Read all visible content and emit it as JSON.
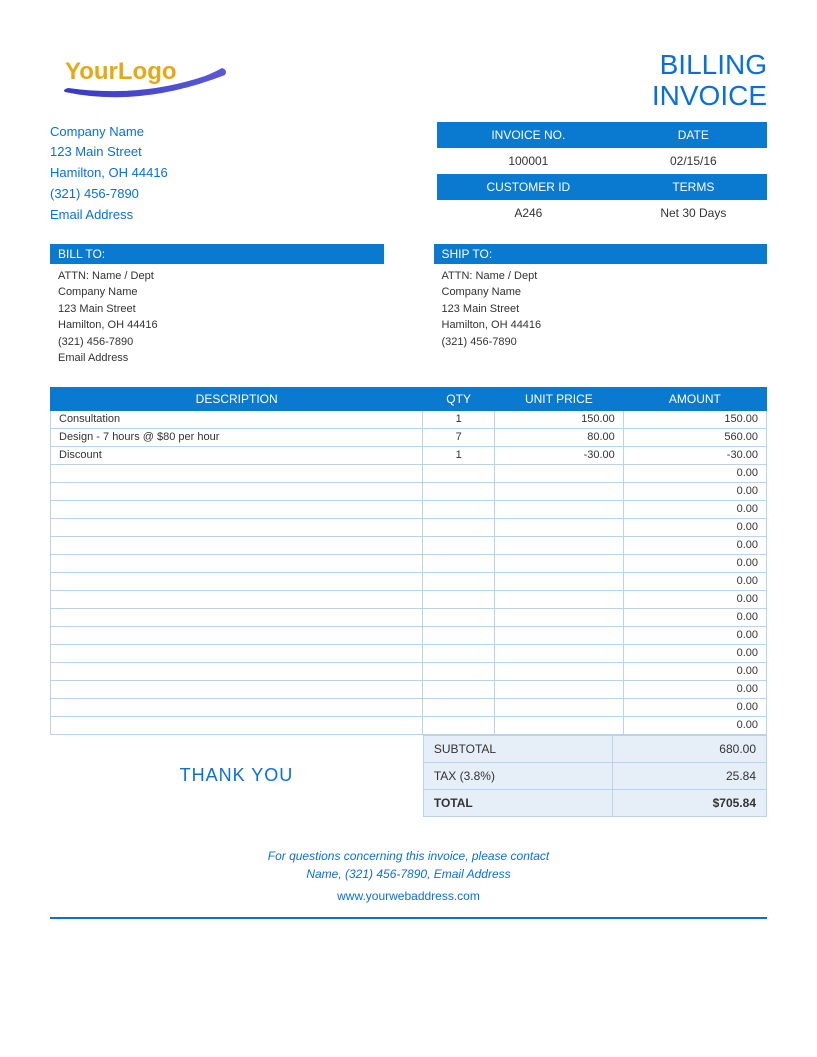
{
  "colors": {
    "primary_blue": "#0a79d0",
    "text_blue": "#0a6fd9",
    "logo_gold": "#e6a817",
    "cell_border": "#b8d4ec",
    "subtotal_bg": "#e6eef8"
  },
  "logo": {
    "text_your": "Your",
    "text_logo": "Logo"
  },
  "title": {
    "line1": "BILLING",
    "line2": "INVOICE"
  },
  "company": {
    "name": "Company Name",
    "street": "123 Main Street",
    "city_state_zip": "Hamilton, OH  44416",
    "phone": "(321) 456-7890",
    "email": "Email Address"
  },
  "meta": {
    "headers": {
      "invoice_no": "INVOICE NO.",
      "date": "DATE",
      "customer_id": "CUSTOMER ID",
      "terms": "TERMS"
    },
    "invoice_no": "100001",
    "date": "02/15/16",
    "customer_id": "A246",
    "terms": "Net 30 Days"
  },
  "bill_to": {
    "header": "BILL TO:",
    "attn": "ATTN: Name / Dept",
    "company": "Company Name",
    "street": "123 Main Street",
    "city_state_zip": "Hamilton, OH  44416",
    "phone": "(321) 456-7890",
    "email": "Email Address"
  },
  "ship_to": {
    "header": "SHIP TO:",
    "attn": "ATTN: Name / Dept",
    "company": "Company Name",
    "street": "123 Main Street",
    "city_state_zip": "Hamilton, OH  44416",
    "phone": "(321) 456-7890"
  },
  "table": {
    "headers": {
      "description": "DESCRIPTION",
      "qty": "QTY",
      "unit_price": "UNIT PRICE",
      "amount": "AMOUNT"
    },
    "rows": [
      {
        "description": "Consultation",
        "qty": "1",
        "unit_price": "150.00",
        "amount": "150.00"
      },
      {
        "description": "Design - 7 hours @ $80 per hour",
        "qty": "7",
        "unit_price": "80.00",
        "amount": "560.00"
      },
      {
        "description": "Discount",
        "qty": "1",
        "unit_price": "-30.00",
        "amount": "-30.00"
      },
      {
        "description": "",
        "qty": "",
        "unit_price": "",
        "amount": "0.00"
      },
      {
        "description": "",
        "qty": "",
        "unit_price": "",
        "amount": "0.00"
      },
      {
        "description": "",
        "qty": "",
        "unit_price": "",
        "amount": "0.00"
      },
      {
        "description": "",
        "qty": "",
        "unit_price": "",
        "amount": "0.00"
      },
      {
        "description": "",
        "qty": "",
        "unit_price": "",
        "amount": "0.00"
      },
      {
        "description": "",
        "qty": "",
        "unit_price": "",
        "amount": "0.00"
      },
      {
        "description": "",
        "qty": "",
        "unit_price": "",
        "amount": "0.00"
      },
      {
        "description": "",
        "qty": "",
        "unit_price": "",
        "amount": "0.00"
      },
      {
        "description": "",
        "qty": "",
        "unit_price": "",
        "amount": "0.00"
      },
      {
        "description": "",
        "qty": "",
        "unit_price": "",
        "amount": "0.00"
      },
      {
        "description": "",
        "qty": "",
        "unit_price": "",
        "amount": "0.00"
      },
      {
        "description": "",
        "qty": "",
        "unit_price": "",
        "amount": "0.00"
      },
      {
        "description": "",
        "qty": "",
        "unit_price": "",
        "amount": "0.00"
      },
      {
        "description": "",
        "qty": "",
        "unit_price": "",
        "amount": "0.00"
      },
      {
        "description": "",
        "qty": "",
        "unit_price": "",
        "amount": "0.00"
      }
    ]
  },
  "thank_you": "THANK YOU",
  "totals": {
    "subtotal_label": "SUBTOTAL",
    "subtotal_value": "680.00",
    "tax_label": "TAX (3.8%)",
    "tax_value": "25.84",
    "total_label": "TOTAL",
    "total_value": "$705.84"
  },
  "footer": {
    "line1": "For questions concerning this invoice, please contact",
    "line2": "Name, (321) 456-7890, Email Address",
    "url": "www.yourwebaddress.com"
  }
}
